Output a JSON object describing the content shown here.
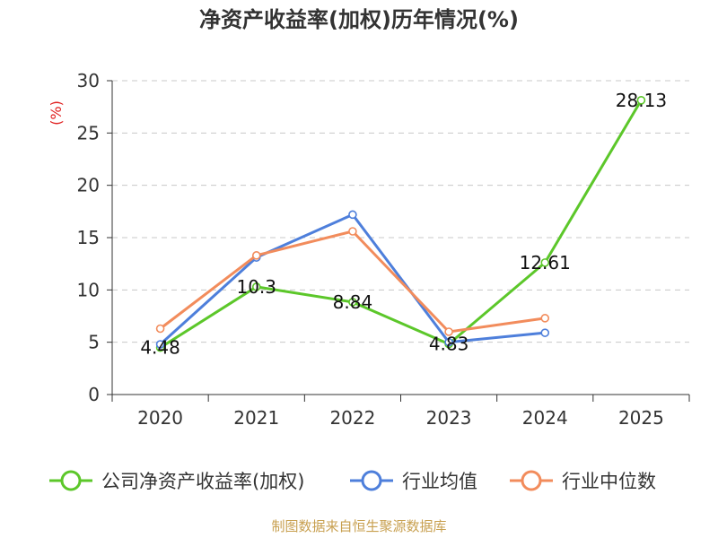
{
  "chart_data": {
    "type": "line",
    "title": "净资产收益率(加权)历年情况(%)",
    "ylabel": "(%)",
    "xlabel": "",
    "categories": [
      "2020",
      "2021",
      "2022",
      "2023",
      "2024",
      "2025"
    ],
    "ylim": [
      0,
      30
    ],
    "yticks": [
      0,
      5,
      10,
      15,
      20,
      25,
      30
    ],
    "grid": true,
    "legend_position": "bottom",
    "series": [
      {
        "name": "公司净资产收益率(加权)",
        "color": "#5cc72a",
        "values": [
          4.48,
          10.3,
          8.84,
          4.83,
          12.61,
          28.13
        ],
        "labels": [
          "4.48",
          "10.3",
          "8.84",
          "4.83",
          "12.61",
          "28.13"
        ]
      },
      {
        "name": "行业均值",
        "color": "#4e7fdb",
        "values": [
          4.8,
          13.1,
          17.2,
          5.0,
          5.9,
          null
        ]
      },
      {
        "name": "行业中位数",
        "color": "#f28c5c",
        "values": [
          6.3,
          13.3,
          15.6,
          6.0,
          7.3,
          null
        ]
      }
    ]
  },
  "source": "制图数据来自恒生聚源数据库"
}
